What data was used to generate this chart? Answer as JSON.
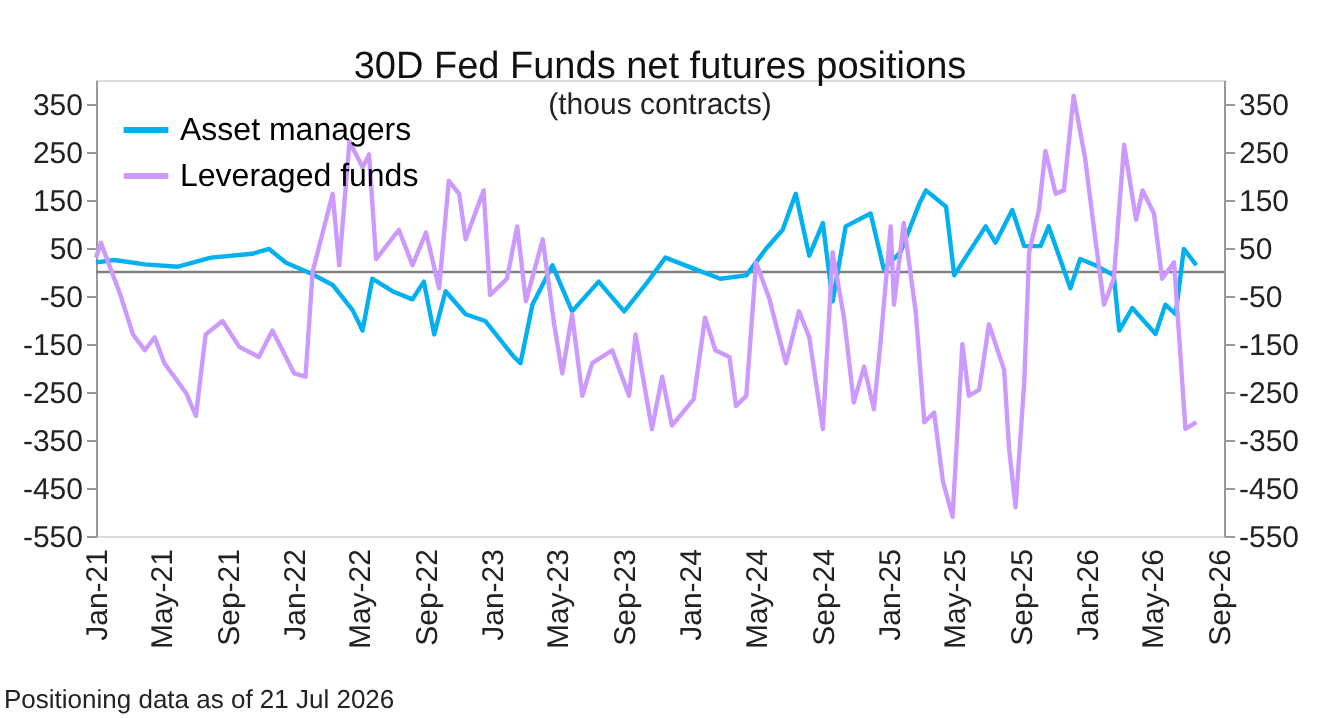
{
  "chart_data": {
    "type": "line",
    "title": "30D Fed Funds net futures positions",
    "subtitle": "(thous contracts)",
    "annotations": [
      "Positioning data as of 21 Jul 2026"
    ],
    "xlim": [
      "2021-01-01",
      "2026-09-10"
    ],
    "xticks": [
      {
        "value": "2021-01-01",
        "label": "Jan-21"
      },
      {
        "value": "2021-05-01",
        "label": "May-21"
      },
      {
        "value": "2021-09-01",
        "label": "Sep-21"
      },
      {
        "value": "2022-01-01",
        "label": "Jan-22"
      },
      {
        "value": "2022-05-01",
        "label": "May-22"
      },
      {
        "value": "2022-09-01",
        "label": "Sep-22"
      },
      {
        "value": "2023-01-01",
        "label": "Jan-23"
      },
      {
        "value": "2023-05-01",
        "label": "May-23"
      },
      {
        "value": "2023-09-01",
        "label": "Sep-23"
      },
      {
        "value": "2024-01-01",
        "label": "Jan-24"
      },
      {
        "value": "2024-05-01",
        "label": "May-24"
      },
      {
        "value": "2024-09-01",
        "label": "Sep-24"
      },
      {
        "value": "2025-01-01",
        "label": "Jan-25"
      },
      {
        "value": "2025-05-01",
        "label": "May-25"
      },
      {
        "value": "2025-09-01",
        "label": "Sep-25"
      },
      {
        "value": "2026-01-01",
        "label": "Jan-26"
      },
      {
        "value": "2026-05-01",
        "label": "May-26"
      },
      {
        "value": "2026-09-01",
        "label": "Sep-26"
      }
    ],
    "ylim": [
      -550,
      400
    ],
    "yticks": [
      -550,
      -450,
      -350,
      -250,
      -150,
      -50,
      50,
      150,
      250,
      350
    ],
    "y2lim": [
      -550,
      400
    ],
    "y2ticks": [
      -550,
      -450,
      -350,
      -250,
      -150,
      -50,
      50,
      150,
      250,
      350
    ],
    "ref_lines": [
      {
        "axis": "y2",
        "value": 0,
        "color": "#808080"
      }
    ],
    "grid": false,
    "legend": "top left",
    "marker": "none",
    "line_style": "solid",
    "series": [
      {
        "name": "Asset managers",
        "color": "#00b0f0",
        "x": [
          "2021-01-01",
          "2021-02-04",
          "2021-04-01",
          "2021-06-01",
          "2021-08-01",
          "2021-10-16",
          "2021-11-16",
          "2021-12-16",
          "2022-02-01",
          "2022-03-13",
          "2022-04-19",
          "2022-05-07",
          "2022-05-25",
          "2022-07-01",
          "2022-08-07",
          "2022-08-28",
          "2022-09-16",
          "2022-10-07",
          "2022-11-13",
          "2022-12-19",
          "2023-02-10",
          "2023-02-22",
          "2023-03-16",
          "2023-04-22",
          "2023-05-28",
          "2023-07-16",
          "2023-09-01",
          "2023-10-10",
          "2023-11-16",
          "2024-01-07",
          "2024-02-25",
          "2024-04-13",
          "2024-05-19",
          "2024-06-19",
          "2024-07-13",
          "2024-08-07",
          "2024-09-01",
          "2024-09-19",
          "2024-10-13",
          "2024-11-28",
          "2024-12-22",
          "2025-01-22",
          "2025-02-26",
          "2025-03-10",
          "2025-04-16",
          "2025-05-01",
          "2025-05-28",
          "2025-06-28",
          "2025-07-16",
          "2025-08-16",
          "2025-09-07",
          "2025-10-07",
          "2025-10-22",
          "2025-12-01",
          "2025-12-19",
          "2026-01-16",
          "2026-02-19",
          "2026-03-01",
          "2026-03-25",
          "2026-05-07",
          "2026-05-25",
          "2026-06-13",
          "2026-06-28",
          "2026-07-21"
        ],
        "values": [
          20,
          25,
          16,
          11,
          30,
          38,
          48,
          20,
          -3,
          -27,
          -80,
          -122,
          -14,
          -40,
          -57,
          -20,
          -130,
          -40,
          -88,
          -102,
          -177,
          -190,
          -68,
          14,
          -82,
          -20,
          -82,
          -27,
          30,
          7,
          -14,
          -7,
          48,
          88,
          163,
          34,
          102,
          -61,
          95,
          122,
          7,
          41,
          143,
          170,
          136,
          -7,
          41,
          95,
          61,
          129,
          54,
          54,
          95,
          -34,
          27,
          14,
          -7,
          -122,
          -75,
          -129,
          -68,
          -88,
          48,
          14
        ]
      },
      {
        "name": "Leveraged funds",
        "color": "#cc99ff",
        "x": [
          "2021-01-01",
          "2021-01-10",
          "2021-02-15",
          "2021-03-10",
          "2021-04-01",
          "2021-04-19",
          "2021-05-07",
          "2021-05-25",
          "2021-06-16",
          "2021-07-04",
          "2021-07-22",
          "2021-08-22",
          "2021-09-22",
          "2021-10-28",
          "2021-11-22",
          "2022-01-01",
          "2022-01-22",
          "2022-02-04",
          "2022-03-13",
          "2022-03-25",
          "2022-04-13",
          "2022-05-07",
          "2022-05-19",
          "2022-06-01",
          "2022-07-13",
          "2022-08-07",
          "2022-09-01",
          "2022-09-25",
          "2022-10-13",
          "2022-11-01",
          "2022-11-13",
          "2022-12-16",
          "2022-12-28",
          "2023-01-28",
          "2023-02-16",
          "2023-03-04",
          "2023-04-04",
          "2023-04-25",
          "2023-05-10",
          "2023-05-28",
          "2023-06-16",
          "2023-07-04",
          "2023-08-10",
          "2023-09-10",
          "2023-09-22",
          "2023-10-22",
          "2023-11-10",
          "2023-11-28",
          "2024-01-07",
          "2024-01-28",
          "2024-02-16",
          "2024-03-13",
          "2024-03-25",
          "2024-04-13",
          "2024-05-01",
          "2024-05-25",
          "2024-06-25",
          "2024-07-19",
          "2024-08-07",
          "2024-09-01",
          "2024-09-19",
          "2024-10-10",
          "2024-10-28",
          "2024-11-16",
          "2024-12-04",
          "2024-12-16",
          "2025-01-04",
          "2025-01-10",
          "2025-01-28",
          "2025-02-19",
          "2025-03-07",
          "2025-03-25",
          "2025-04-10",
          "2025-04-28",
          "2025-05-16",
          "2025-05-28",
          "2025-06-16",
          "2025-07-04",
          "2025-08-01",
          "2025-08-10",
          "2025-08-22",
          "2025-09-07",
          "2025-09-16",
          "2025-10-04",
          "2025-10-16",
          "2025-11-04",
          "2025-11-19",
          "2025-12-07",
          "2025-12-28",
          "2026-01-16",
          "2026-02-01",
          "2026-02-19",
          "2026-03-10",
          "2026-04-01",
          "2026-04-13",
          "2026-05-04",
          "2026-05-19",
          "2026-06-10",
          "2026-07-01",
          "2026-07-21"
        ],
        "values": [
          30,
          61,
          -48,
          -130,
          -163,
          -136,
          -190,
          -218,
          -252,
          -300,
          -130,
          -102,
          -156,
          -177,
          -122,
          -211,
          -218,
          0,
          163,
          14,
          272,
          218,
          245,
          27,
          88,
          14,
          82,
          -34,
          190,
          163,
          68,
          170,
          -48,
          -14,
          95,
          -61,
          68,
          -109,
          -211,
          -88,
          -258,
          -190,
          -163,
          -258,
          -130,
          -327,
          -218,
          -320,
          -265,
          -95,
          -163,
          -177,
          -279,
          -258,
          20,
          -54,
          -190,
          -82,
          -136,
          -327,
          41,
          -95,
          -272,
          -197,
          -286,
          -150,
          95,
          -68,
          102,
          -82,
          -313,
          -293,
          -435,
          -510,
          -150,
          -258,
          -245,
          -109,
          -204,
          -367,
          -490,
          -231,
          41,
          129,
          252,
          163,
          170,
          367,
          238,
          68,
          -68,
          -14,
          265,
          109,
          170,
          122,
          -14,
          20,
          -327,
          -313
        ]
      }
    ]
  }
}
